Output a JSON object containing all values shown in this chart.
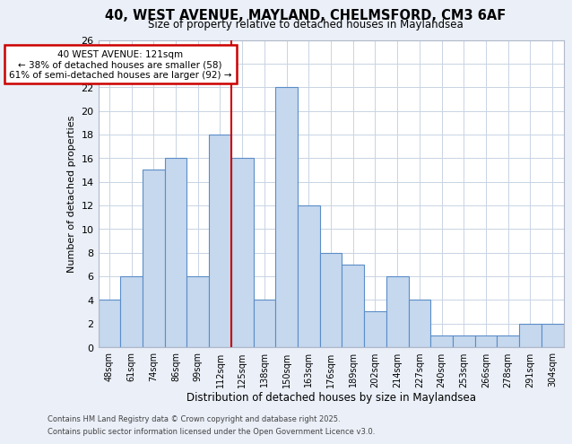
{
  "title1": "40, WEST AVENUE, MAYLAND, CHELMSFORD, CM3 6AF",
  "title2": "Size of property relative to detached houses in Maylandsea",
  "xlabel": "Distribution of detached houses by size in Maylandsea",
  "ylabel": "Number of detached properties",
  "categories": [
    "48sqm",
    "61sqm",
    "74sqm",
    "86sqm",
    "99sqm",
    "112sqm",
    "125sqm",
    "138sqm",
    "150sqm",
    "163sqm",
    "176sqm",
    "189sqm",
    "202sqm",
    "214sqm",
    "227sqm",
    "240sqm",
    "253sqm",
    "266sqm",
    "278sqm",
    "291sqm",
    "304sqm"
  ],
  "values": [
    4,
    6,
    15,
    16,
    6,
    18,
    16,
    4,
    22,
    12,
    8,
    7,
    3,
    6,
    4,
    1,
    1,
    1,
    1,
    2,
    2
  ],
  "bar_color": "#c5d8ee",
  "bar_edge_color": "#5b8dc8",
  "vline_index": 6,
  "vline_color": "#cc0000",
  "annotation_title": "40 WEST AVENUE: 121sqm",
  "annotation_line2": "← 38% of detached houses are smaller (58)",
  "annotation_line3": "61% of semi-detached houses are larger (92) →",
  "annotation_box_color": "#cc0000",
  "annotation_bg": "#ffffff",
  "ylim": [
    0,
    26
  ],
  "yticks": [
    0,
    2,
    4,
    6,
    8,
    10,
    12,
    14,
    16,
    18,
    20,
    22,
    24,
    26
  ],
  "grid_color": "#c8d4e3",
  "bg_color": "#eaeff8",
  "plot_bg": "#ffffff",
  "footer1": "Contains HM Land Registry data © Crown copyright and database right 2025.",
  "footer2": "Contains public sector information licensed under the Open Government Licence v3.0."
}
